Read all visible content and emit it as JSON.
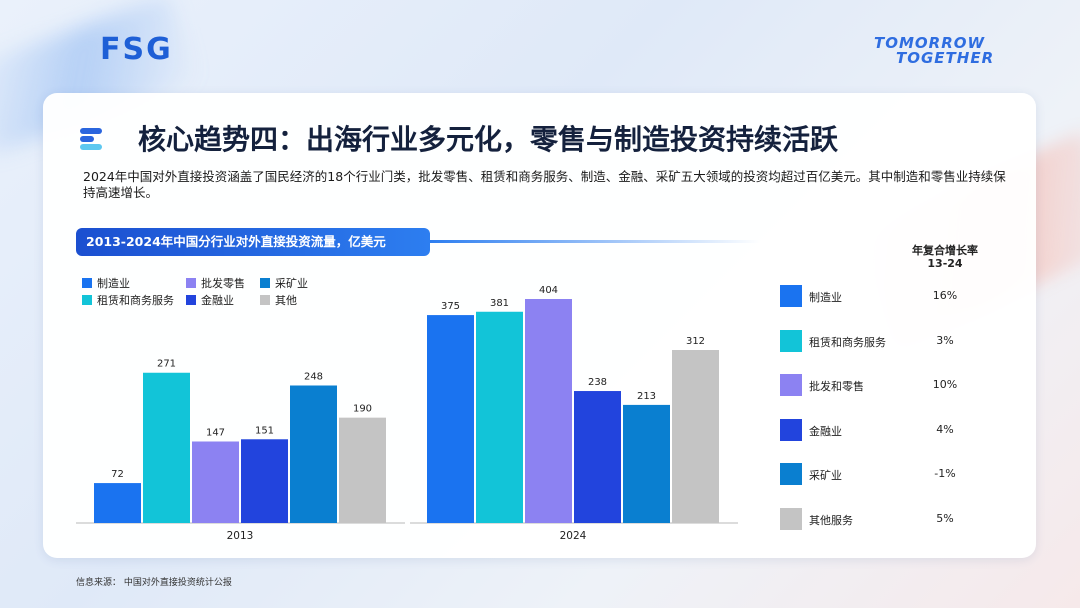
{
  "header": {
    "logo_left": "FSG",
    "logo_right_line1": "TOMORROW",
    "logo_right_line2": "TOGETHER"
  },
  "title": "核心趋势四：出海行业多元化，零售与制造投资持续活跃",
  "intro": "2024年中国对外直接投资涵盖了国民经济的18个行业门类，批发零售、租赁和商务服务、制造、金融、采矿五大领域的投资均超过百亿美元。其中制造和零售业持续保持高速增长。",
  "chart_banner": "2013-2024年中国分行业对外直接投资流量，亿美元",
  "colors": {
    "manufacturing": "#1a73f0",
    "leasing": "#12c4d8",
    "wholesale": "#8c82f2",
    "finance": "#2244dd",
    "mining": "#0a7fd0",
    "other": "#c4c4c4"
  },
  "chart_data": {
    "type": "bar",
    "title": "2013-2024年中国分行业对外直接投资流量，亿美元",
    "categories": [
      "2013",
      "2024"
    ],
    "ylim": [
      0,
      420
    ],
    "grid": false,
    "legend": "top-left",
    "series": [
      {
        "name": "制造业",
        "color": "#1a73f0",
        "values": [
          72,
          375
        ]
      },
      {
        "name": "租赁和商务服务",
        "color": "#12c4d8",
        "values": [
          271,
          381
        ]
      },
      {
        "name": "批发零售",
        "color": "#8c82f2",
        "values": [
          147,
          404
        ]
      },
      {
        "name": "金融业",
        "color": "#2244dd",
        "values": [
          151,
          238
        ]
      },
      {
        "name": "采矿业",
        "color": "#0a7fd0",
        "values": [
          248,
          213
        ]
      },
      {
        "name": "其他",
        "color": "#c4c4c4",
        "values": [
          190,
          312
        ]
      }
    ]
  },
  "cagr": {
    "header_line1": "年复合增长率",
    "header_line2": "13-24",
    "rows": [
      {
        "label": "制造业",
        "value": "16%",
        "color": "#1a73f0"
      },
      {
        "label": "租赁和商务服务",
        "value": "3%",
        "color": "#12c4d8"
      },
      {
        "label": "批发和零售",
        "value": "10%",
        "color": "#8c82f2"
      },
      {
        "label": "金融业",
        "value": "4%",
        "color": "#2244dd"
      },
      {
        "label": "采矿业",
        "value": "-1%",
        "color": "#0a7fd0"
      },
      {
        "label": "其他服务",
        "value": "5%",
        "color": "#c4c4c4"
      }
    ]
  },
  "source": "信息来源： 中国对外直接投资统计公报"
}
